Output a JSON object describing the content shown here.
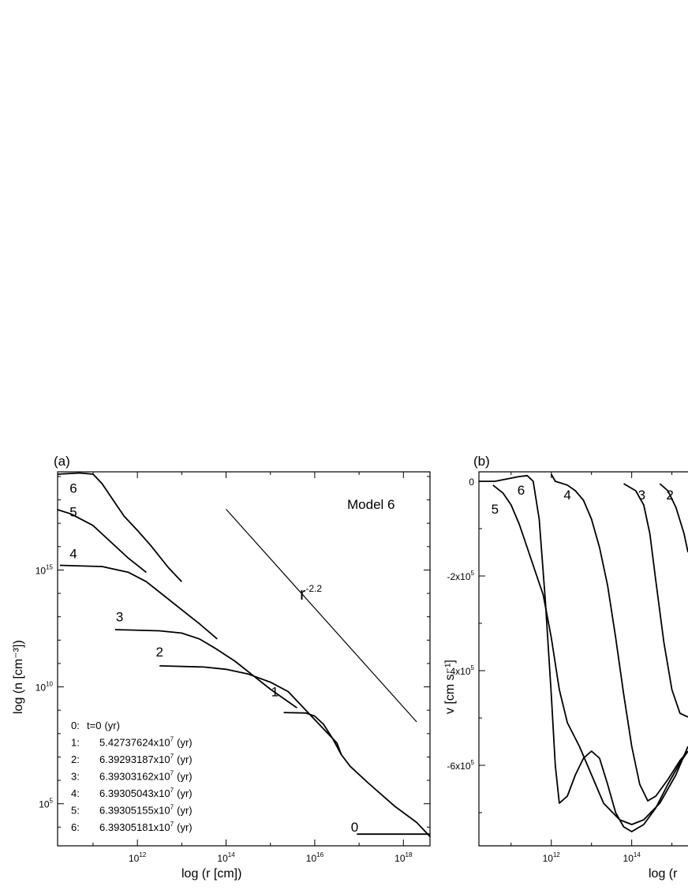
{
  "chart_data": [
    {
      "panel_label": "(a)",
      "type": "line",
      "annotation": "Model 6",
      "xlabel": "log (r [cm])",
      "ylabel": "log (n [cm⁻³])",
      "x_scale": "log",
      "y_scale": "log",
      "xlim_log10": [
        10.2,
        18.6
      ],
      "ylim_log10": [
        3.2,
        19.2
      ],
      "x_ticks": [
        {
          "base": "10",
          "exp": "12",
          "log10": 12
        },
        {
          "base": "10",
          "exp": "14",
          "log10": 14
        },
        {
          "base": "10",
          "exp": "16",
          "log10": 16
        },
        {
          "base": "10",
          "exp": "18",
          "log10": 18
        }
      ],
      "y_ticks": [
        {
          "base": "10",
          "exp": "5",
          "log10": 5
        },
        {
          "base": "10",
          "exp": "10",
          "log10": 10
        },
        {
          "base": "10",
          "exp": "15",
          "log10": 15
        }
      ],
      "power_law": {
        "base": "r",
        "exp": "-2.2",
        "from": [
          14.0,
          17.6
        ],
        "to": [
          18.3,
          8.5
        ]
      },
      "series": [
        {
          "name": "0",
          "label_at": [
            16.9,
            3.8
          ],
          "points": [
            [
              16.95,
              3.7
            ],
            [
              18.6,
              3.7
            ]
          ]
        },
        {
          "name": "1",
          "label_at": [
            15.1,
            9.6
          ],
          "points": [
            [
              15.3,
              8.9
            ],
            [
              15.8,
              8.88
            ],
            [
              16.0,
              8.75
            ],
            [
              16.2,
              8.4
            ],
            [
              16.4,
              7.8
            ],
            [
              16.6,
              7.1
            ],
            [
              16.8,
              6.6
            ],
            [
              17.2,
              5.9
            ],
            [
              17.8,
              4.9
            ],
            [
              18.3,
              4.2
            ],
            [
              18.6,
              3.6
            ]
          ]
        },
        {
          "name": "2",
          "label_at": [
            12.5,
            11.3
          ],
          "points": [
            [
              12.5,
              10.9
            ],
            [
              13.5,
              10.85
            ],
            [
              14.0,
              10.75
            ],
            [
              14.5,
              10.55
            ],
            [
              15.0,
              10.2
            ],
            [
              15.4,
              9.8
            ],
            [
              15.8,
              9.0
            ],
            [
              16.2,
              8.2
            ],
            [
              16.5,
              7.6
            ],
            [
              16.6,
              7.1
            ]
          ]
        },
        {
          "name": "3",
          "label_at": [
            11.6,
            12.8
          ],
          "points": [
            [
              11.5,
              12.45
            ],
            [
              12.5,
              12.4
            ],
            [
              13.0,
              12.3
            ],
            [
              13.4,
              12.05
            ],
            [
              13.8,
              11.6
            ],
            [
              14.2,
              11.1
            ],
            [
              14.6,
              10.5
            ],
            [
              15.0,
              9.9
            ],
            [
              15.6,
              9.1
            ]
          ]
        },
        {
          "name": "4",
          "label_at": [
            10.2,
            15.5
          ],
          "points": [
            [
              10.25,
              15.2
            ],
            [
              11.2,
              15.15
            ],
            [
              11.8,
              14.9
            ],
            [
              12.2,
              14.5
            ],
            [
              12.6,
              13.9
            ],
            [
              13.0,
              13.3
            ],
            [
              13.4,
              12.7
            ],
            [
              13.8,
              12.05
            ]
          ]
        },
        {
          "name": "5",
          "label_at": [
            8.7,
            17.3
          ],
          "points": [
            [
              8.75,
              17.6
            ],
            [
              9.8,
              17.58
            ],
            [
              10.5,
              17.4
            ],
            [
              11.0,
              16.9
            ],
            [
              11.4,
              16.2
            ],
            [
              11.8,
              15.5
            ],
            [
              12.2,
              14.9
            ]
          ]
        },
        {
          "name": "6",
          "label_at": [
            10.3,
            18.3
          ],
          "points": [
            [
              10.2,
              19.1
            ],
            [
              10.7,
              19.15
            ],
            [
              11.0,
              19.1
            ],
            [
              11.2,
              18.7
            ],
            [
              11.45,
              18.0
            ],
            [
              11.7,
              17.3
            ],
            [
              12.0,
              16.7
            ],
            [
              12.3,
              16.05
            ],
            [
              12.7,
              15.1
            ],
            [
              13.0,
              14.5
            ]
          ]
        }
      ],
      "legend": {
        "placement": "bottom-left",
        "rows": [
          {
            "key": "0:",
            "base": "t=0",
            "exp": "",
            "unit": "(yr)"
          },
          {
            "key": "1:",
            "base": "5.42737624x10",
            "exp": "7",
            "unit": "(yr)"
          },
          {
            "key": "2:",
            "base": "6.39293187x10",
            "exp": "7",
            "unit": "(yr)"
          },
          {
            "key": "3:",
            "base": "6.39303162x10",
            "exp": "7",
            "unit": "(yr)"
          },
          {
            "key": "4:",
            "base": "6.39305043x10",
            "exp": "7",
            "unit": "(yr)"
          },
          {
            "key": "5:",
            "base": "6.39305155x10",
            "exp": "7",
            "unit": "(yr)"
          },
          {
            "key": "6:",
            "base": "6.39305181x10",
            "exp": "7",
            "unit": "(yr)"
          }
        ]
      }
    },
    {
      "panel_label": "(b)",
      "type": "line",
      "xlabel": "log (r",
      "ylabel": "v [cm s⁻¹]",
      "x_scale": "log",
      "xlim_log10": [
        10.2,
        15.4
      ],
      "ylim": [
        -770000,
        20000
      ],
      "x_ticks": [
        {
          "base": "10",
          "exp": "12",
          "log10": 12
        },
        {
          "base": "10",
          "exp": "14",
          "log10": 14
        }
      ],
      "y_ticks": [
        {
          "base": "0",
          "exp": "",
          "value": 0
        },
        {
          "base": "-2x10",
          "exp": "5",
          "value": -200000
        },
        {
          "base": "-4x10",
          "exp": "5",
          "value": -400000
        },
        {
          "base": "-6x10",
          "exp": "5",
          "value": -600000
        }
      ],
      "series": [
        {
          "name": "5",
          "label_at": [
            10.6,
            -45000
          ],
          "points": [
            [
              10.55,
              -8000
            ],
            [
              10.8,
              -25000
            ],
            [
              11.0,
              -50000
            ],
            [
              11.2,
              -90000
            ],
            [
              11.4,
              -140000
            ],
            [
              11.6,
              -190000
            ],
            [
              11.8,
              -240000
            ],
            [
              12.0,
              -330000
            ],
            [
              12.2,
              -440000
            ],
            [
              12.4,
              -510000
            ],
            [
              12.7,
              -560000
            ],
            [
              13.0,
              -620000
            ],
            [
              13.3,
              -680000
            ],
            [
              13.7,
              -715000
            ],
            [
              14.0,
              -725000
            ],
            [
              14.3,
              -715000
            ],
            [
              14.7,
              -680000
            ],
            [
              15.1,
              -620000
            ],
            [
              15.4,
              -560000
            ]
          ]
        },
        {
          "name": "6",
          "label_at": [
            11.25,
            -5000
          ],
          "points": [
            [
              10.2,
              0
            ],
            [
              10.6,
              0
            ],
            [
              10.9,
              5000
            ],
            [
              11.2,
              10000
            ],
            [
              11.4,
              12000
            ],
            [
              11.55,
              0
            ],
            [
              11.7,
              -80000
            ],
            [
              11.85,
              -250000
            ],
            [
              12.0,
              -450000
            ],
            [
              12.1,
              -600000
            ],
            [
              12.2,
              -680000
            ],
            [
              12.4,
              -665000
            ],
            [
              12.6,
              -620000
            ],
            [
              12.8,
              -585000
            ],
            [
              13.0,
              -570000
            ],
            [
              13.2,
              -585000
            ],
            [
              13.4,
              -640000
            ],
            [
              13.6,
              -700000
            ],
            [
              13.8,
              -730000
            ],
            [
              14.0,
              -740000
            ],
            [
              14.3,
              -725000
            ],
            [
              14.6,
              -690000
            ],
            [
              14.9,
              -640000
            ],
            [
              15.2,
              -595000
            ],
            [
              15.4,
              -570000
            ]
          ]
        },
        {
          "name": "4",
          "label_at": [
            12.4,
            -15000
          ],
          "points": [
            [
              12.0,
              15000
            ],
            [
              12.1,
              0
            ],
            [
              12.4,
              -8000
            ],
            [
              12.6,
              -20000
            ],
            [
              12.8,
              -40000
            ],
            [
              13.0,
              -80000
            ],
            [
              13.2,
              -140000
            ],
            [
              13.4,
              -220000
            ],
            [
              13.6,
              -330000
            ],
            [
              13.8,
              -450000
            ],
            [
              14.0,
              -560000
            ],
            [
              14.2,
              -640000
            ],
            [
              14.4,
              -675000
            ],
            [
              14.6,
              -665000
            ],
            [
              14.9,
              -630000
            ],
            [
              15.2,
              -590000
            ],
            [
              15.4,
              -570000
            ]
          ]
        },
        {
          "name": "3",
          "label_at": [
            14.25,
            -15000
          ],
          "points": [
            [
              13.8,
              -5000
            ],
            [
              14.1,
              -20000
            ],
            [
              14.3,
              -50000
            ],
            [
              14.45,
              -110000
            ],
            [
              14.6,
              -210000
            ],
            [
              14.8,
              -340000
            ],
            [
              15.0,
              -440000
            ],
            [
              15.2,
              -490000
            ],
            [
              15.4,
              -498000
            ]
          ]
        },
        {
          "name": "2",
          "label_at": [
            14.95,
            -15000
          ],
          "points": [
            [
              14.7,
              -5000
            ],
            [
              14.9,
              -20000
            ],
            [
              15.1,
              -55000
            ],
            [
              15.3,
              -110000
            ],
            [
              15.4,
              -150000
            ]
          ]
        }
      ]
    }
  ]
}
